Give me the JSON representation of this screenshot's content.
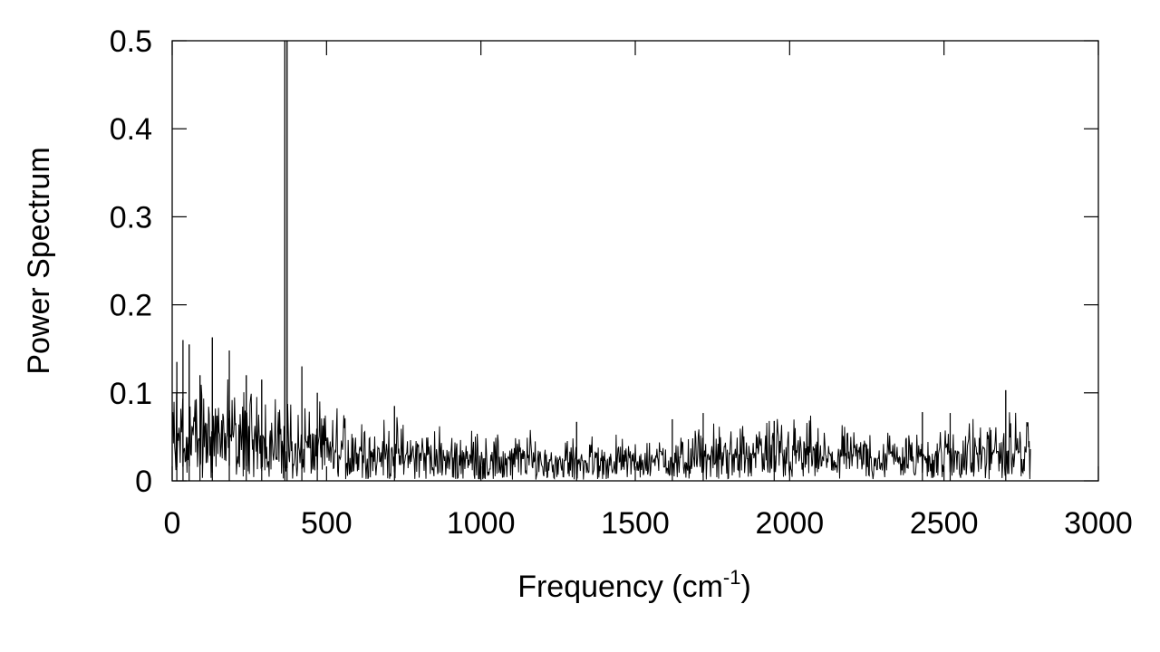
{
  "chart_data": {
    "type": "line",
    "title": "",
    "xlabel": "Frequency (cm",
    "xlabel_superscript": "-1",
    "xlabel_suffix": ")",
    "ylabel": "Power Spectrum",
    "xlim": [
      0,
      3000
    ],
    "ylim": [
      0,
      0.5
    ],
    "x_ticks": [
      0,
      500,
      1000,
      1500,
      2000,
      2500,
      3000
    ],
    "x_tick_labels": [
      "0",
      "500",
      "1000",
      "1500",
      "2000",
      "2500",
      "3000"
    ],
    "y_ticks": [
      0,
      0.1,
      0.2,
      0.3,
      0.4,
      0.5
    ],
    "y_tick_labels": [
      "0",
      "0.1",
      "0.2",
      "0.3",
      "0.4",
      "0.5"
    ],
    "grid": false,
    "legend": "none",
    "line_color": "#000000",
    "series": [
      {
        "x_range": [
          0,
          2780
        ],
        "envelope": [
          {
            "x": 0,
            "y": 0.05
          },
          {
            "x": 100,
            "y": 0.06
          },
          {
            "x": 250,
            "y": 0.055
          },
          {
            "x": 340,
            "y": 0.05
          },
          {
            "x": 500,
            "y": 0.04
          },
          {
            "x": 800,
            "y": 0.03
          },
          {
            "x": 1000,
            "y": 0.028
          },
          {
            "x": 1300,
            "y": 0.025
          },
          {
            "x": 1500,
            "y": 0.024
          },
          {
            "x": 1800,
            "y": 0.032
          },
          {
            "x": 2000,
            "y": 0.035
          },
          {
            "x": 2300,
            "y": 0.028
          },
          {
            "x": 2600,
            "y": 0.035
          },
          {
            "x": 2780,
            "y": 0.035
          }
        ],
        "peaks": [
          {
            "x": 15,
            "y": 0.135
          },
          {
            "x": 35,
            "y": 0.16
          },
          {
            "x": 55,
            "y": 0.155
          },
          {
            "x": 90,
            "y": 0.12
          },
          {
            "x": 130,
            "y": 0.163
          },
          {
            "x": 185,
            "y": 0.148
          },
          {
            "x": 240,
            "y": 0.12
          },
          {
            "x": 290,
            "y": 0.115
          },
          {
            "x": 365,
            "y": 0.5
          },
          {
            "x": 372,
            "y": 0.5
          },
          {
            "x": 420,
            "y": 0.13
          },
          {
            "x": 470,
            "y": 0.1
          },
          {
            "x": 720,
            "y": 0.085
          },
          {
            "x": 1310,
            "y": 0.067
          },
          {
            "x": 1620,
            "y": 0.07
          },
          {
            "x": 1720,
            "y": 0.077
          },
          {
            "x": 1950,
            "y": 0.068
          },
          {
            "x": 2430,
            "y": 0.078
          },
          {
            "x": 2520,
            "y": 0.077
          },
          {
            "x": 2700,
            "y": 0.103
          }
        ]
      }
    ]
  }
}
